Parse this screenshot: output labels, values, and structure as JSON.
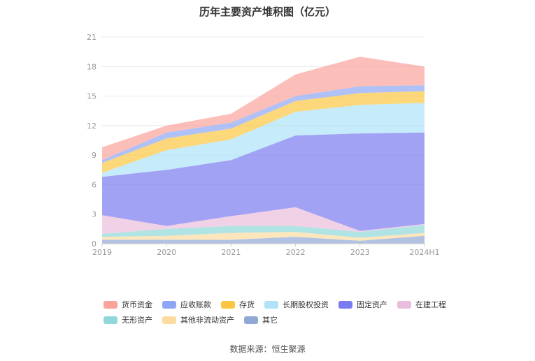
{
  "chart_data": {
    "type": "area",
    "stacked": true,
    "title": "历年主要资产堆积图（亿元）",
    "categories": [
      "2019",
      "2020",
      "2021",
      "2022",
      "2023",
      "2024H1"
    ],
    "y_ticks": [
      "0",
      "3",
      "6",
      "9",
      "12",
      "15",
      "18",
      "21"
    ],
    "ylim": [
      0,
      21
    ],
    "grid": true,
    "legend_position": "bottom",
    "series": [
      {
        "name": "其它",
        "color": "#91a8d6",
        "values": [
          0.4,
          0.4,
          0.4,
          0.7,
          0.3,
          0.8
        ]
      },
      {
        "name": "其他非流动资产",
        "color": "#fcdba0",
        "values": [
          0.3,
          0.4,
          0.7,
          0.5,
          0.3,
          0.3
        ]
      },
      {
        "name": "无形资产",
        "color": "#8fd7d9",
        "values": [
          0.3,
          0.7,
          0.7,
          0.6,
          0.6,
          0.8
        ]
      },
      {
        "name": "在建工程",
        "color": "#ebbddc",
        "values": [
          1.9,
          0.3,
          1.0,
          1.9,
          0.1,
          0.1
        ]
      },
      {
        "name": "固定资产",
        "color": "#7b7bf1",
        "values": [
          3.9,
          5.7,
          5.7,
          7.3,
          9.9,
          9.3
        ]
      },
      {
        "name": "长期股权投资",
        "color": "#aee3f9",
        "values": [
          0.4,
          2.0,
          2.1,
          2.4,
          2.9,
          3.0
        ]
      },
      {
        "name": "存货",
        "color": "#fbc743",
        "values": [
          1.0,
          1.2,
          1.1,
          1.1,
          1.2,
          1.2
        ]
      },
      {
        "name": "应收账款",
        "color": "#8fa6f5",
        "values": [
          0.3,
          0.6,
          0.6,
          0.5,
          0.7,
          0.6
        ]
      },
      {
        "name": "货币资金",
        "color": "#f9a39b",
        "values": [
          1.3,
          0.7,
          0.9,
          2.2,
          3.0,
          1.9
        ]
      }
    ],
    "legend_order": [
      "货币资金",
      "应收账款",
      "存货",
      "长期股权投资",
      "固定资产",
      "在建工程",
      "无形资产",
      "其他非流动资产",
      "其它"
    ],
    "source": "数据来源：恒生聚源"
  }
}
